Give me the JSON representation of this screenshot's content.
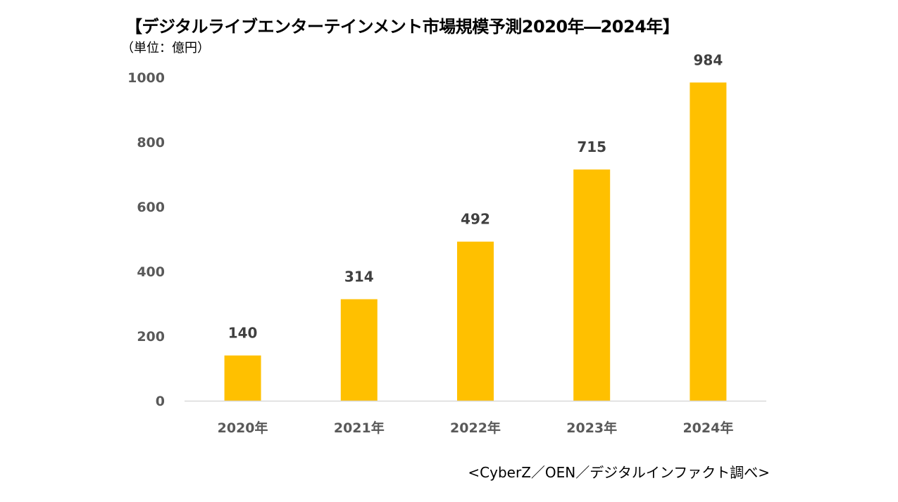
{
  "chart_data": {
    "type": "bar",
    "title": "【デジタルライブエンターテインメント市場規模予測2020年―2024年】",
    "subtitle": "（単位：億円）",
    "source": "<CyberZ／OEN／デジタルインファクト調べ>",
    "categories": [
      "2020年",
      "2021年",
      "2022年",
      "2023年",
      "2024年"
    ],
    "values": [
      140,
      314,
      492,
      715,
      984
    ],
    "data_labels": [
      "140",
      "314",
      "492",
      "715",
      "984"
    ],
    "ylim": [
      0,
      1000
    ],
    "yticks": [
      0,
      200,
      400,
      600,
      800,
      1000
    ],
    "ytick_labels": [
      "0",
      "200",
      "400",
      "600",
      "800",
      "1000"
    ],
    "xlabel": "",
    "ylabel": "",
    "grid": false,
    "legend": "none",
    "colors": {
      "bar": "#FFC000",
      "axis": "#D9D9D9"
    }
  }
}
